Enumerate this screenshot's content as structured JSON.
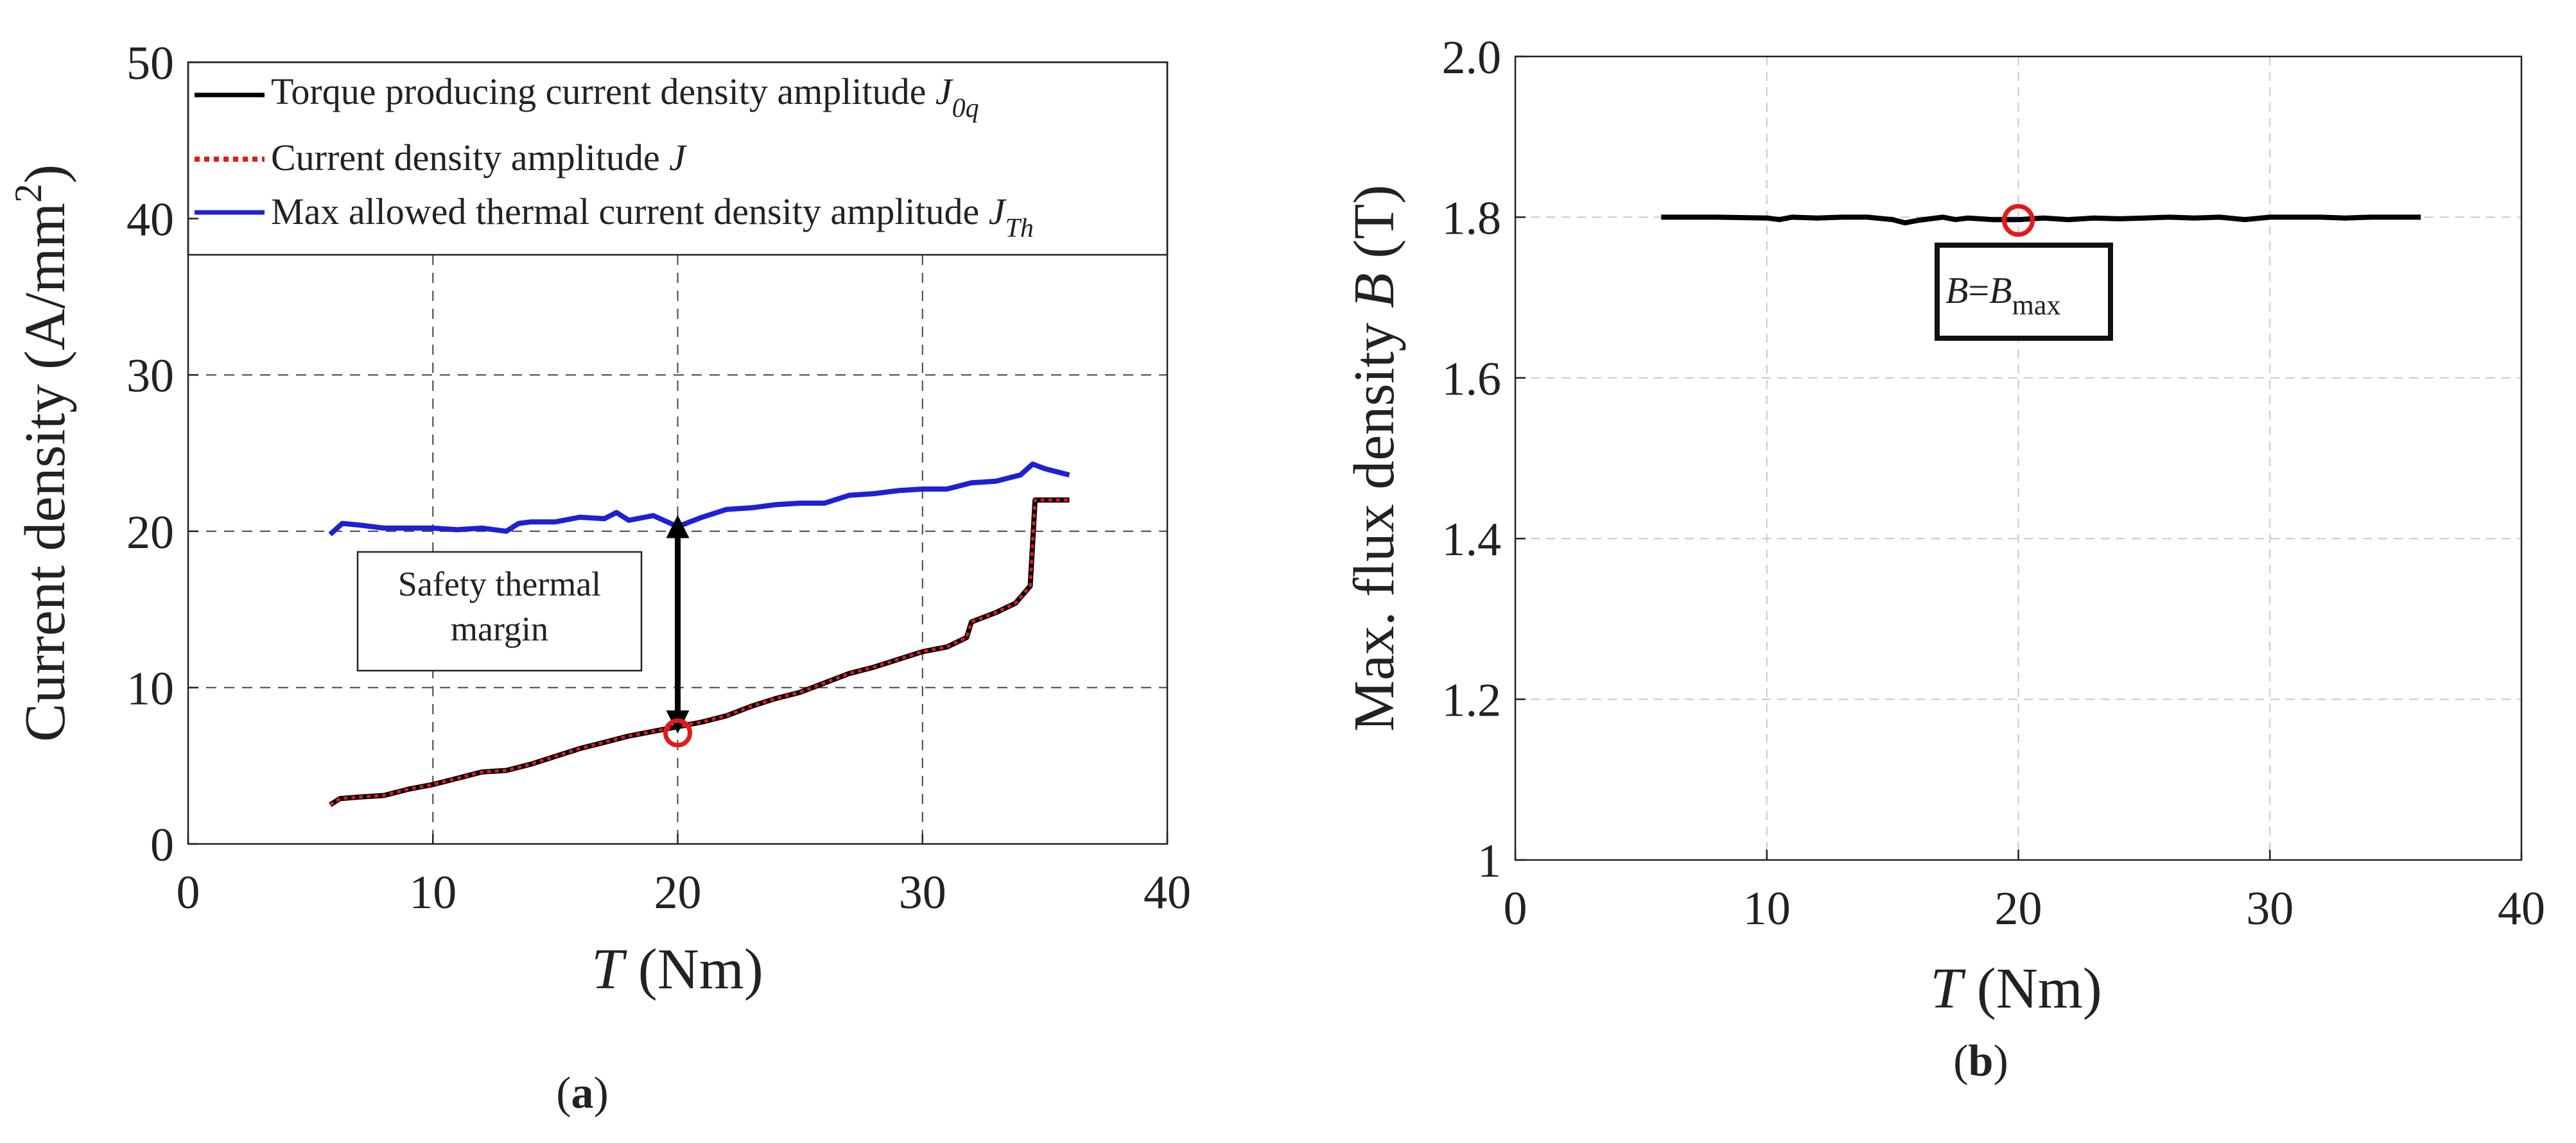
{
  "chart_data": [
    {
      "id": "a",
      "type": "line",
      "caption": "a",
      "xlabel_var": "T",
      "xlabel_unit": "(Nm)",
      "ylabel": "Current density (A/mm",
      "ylabel_sup": "2",
      "ylabel_close": ")",
      "xlim": [
        0,
        40
      ],
      "ylim": [
        0,
        50
      ],
      "xticks": [
        "0",
        "10",
        "20",
        "30",
        "40"
      ],
      "yticks": [
        "0",
        "10",
        "20",
        "30",
        "40",
        "50"
      ],
      "grid": true,
      "legend_position": "top",
      "series": [
        {
          "name": "Torque producing current density amplitude",
          "symbol": "J",
          "subscript": "0q",
          "color": "#000000",
          "style": "solid",
          "x": [
            5.8,
            6.2,
            7,
            8,
            9,
            10,
            11,
            12,
            13,
            14,
            15,
            16,
            17,
            18,
            19,
            20,
            21,
            22,
            23,
            24,
            25,
            26,
            27,
            28,
            29,
            30,
            31,
            31.8,
            32,
            33,
            33.8,
            34.4,
            34.6,
            35,
            36
          ],
          "y": [
            2.5,
            2.9,
            3.0,
            3.1,
            3.5,
            3.8,
            4.2,
            4.6,
            4.7,
            5.1,
            5.6,
            6.1,
            6.5,
            6.9,
            7.2,
            7.5,
            7.8,
            8.2,
            8.8,
            9.3,
            9.7,
            10.3,
            10.9,
            11.3,
            11.8,
            12.3,
            12.6,
            13.2,
            14.2,
            14.8,
            15.4,
            16.5,
            22.0,
            22.0,
            22.0
          ]
        },
        {
          "name": "Current density amplitude",
          "symbol": "J",
          "subscript": "",
          "color": "#e21a1a",
          "style": "dotted",
          "x": [
            5.8,
            6.2,
            7,
            8,
            9,
            10,
            11,
            12,
            13,
            14,
            15,
            16,
            17,
            18,
            19,
            20,
            21,
            22,
            23,
            24,
            25,
            26,
            27,
            28,
            29,
            30,
            31,
            31.8,
            32,
            33,
            33.8,
            34.4,
            34.6,
            35,
            36
          ],
          "y": [
            2.5,
            2.9,
            3.0,
            3.1,
            3.5,
            3.8,
            4.2,
            4.6,
            4.7,
            5.1,
            5.6,
            6.1,
            6.5,
            6.9,
            7.2,
            7.5,
            7.8,
            8.2,
            8.8,
            9.3,
            9.7,
            10.3,
            10.9,
            11.3,
            11.8,
            12.3,
            12.6,
            13.2,
            14.2,
            14.8,
            15.4,
            16.5,
            22.0,
            22.0,
            22.0
          ]
        },
        {
          "name": "Max allowed thermal current density amplitude",
          "symbol": "J",
          "subscript": "Th",
          "color": "#1f1fd6",
          "style": "solid",
          "x": [
            5.8,
            6.3,
            7,
            8,
            9,
            10,
            11,
            12,
            13,
            13.5,
            14,
            15,
            16,
            17,
            17.5,
            18,
            19,
            20,
            21,
            22,
            23,
            24,
            25,
            26,
            27,
            28,
            29,
            30,
            31,
            32,
            33,
            34,
            34.5,
            35,
            36
          ],
          "y": [
            19.8,
            20.5,
            20.4,
            20.2,
            20.2,
            20.2,
            20.1,
            20.2,
            20.0,
            20.5,
            20.6,
            20.6,
            20.9,
            20.8,
            21.2,
            20.7,
            21.0,
            20.3,
            20.9,
            21.4,
            21.5,
            21.7,
            21.8,
            21.8,
            22.3,
            22.4,
            22.6,
            22.7,
            22.7,
            23.1,
            23.2,
            23.6,
            24.3,
            24.0,
            23.6
          ]
        }
      ],
      "annotations": {
        "box_line1": "Safety thermal",
        "box_line2": "margin",
        "marker": {
          "x": 20,
          "y": 7.1,
          "color": "#e21a1a"
        },
        "arrow": {
          "x": 20,
          "y_from": 7.8,
          "y_to": 20.3
        }
      }
    },
    {
      "id": "b",
      "type": "line",
      "caption": "b",
      "xlabel_var": "T",
      "xlabel_unit": "(Nm)",
      "ylabel": "Max. flux density",
      "ylabel_var": "B",
      "ylabel_unit": "(T)",
      "xlim": [
        0,
        40
      ],
      "ylim": [
        1.0,
        2.0
      ],
      "xticks": [
        "0",
        "10",
        "20",
        "30",
        "40"
      ],
      "yticks": [
        "1",
        "1.2",
        "1.4",
        "1.6",
        "1.8",
        "2.0"
      ],
      "grid": true,
      "series": [
        {
          "name": "B",
          "color": "#000000",
          "style": "solid",
          "x": [
            5.8,
            8,
            10,
            10.5,
            11,
            12,
            13,
            14,
            15,
            15.5,
            16,
            17,
            17.5,
            18,
            19,
            20,
            21,
            22,
            23,
            24,
            25,
            26,
            27,
            28,
            29,
            30,
            31,
            32,
            33,
            34,
            35,
            36
          ],
          "y": [
            1.8,
            1.8,
            1.799,
            1.797,
            1.8,
            1.799,
            1.8,
            1.8,
            1.797,
            1.793,
            1.796,
            1.8,
            1.797,
            1.799,
            1.797,
            1.797,
            1.799,
            1.797,
            1.799,
            1.798,
            1.799,
            1.8,
            1.799,
            1.8,
            1.797,
            1.8,
            1.8,
            1.8,
            1.799,
            1.8,
            1.8,
            1.8
          ]
        }
      ],
      "annotations": {
        "box_var": "B",
        "box_eq": "=",
        "box_var2": "B",
        "box_sub": "max",
        "marker": {
          "x": 20,
          "y": 1.796,
          "color": "#e21a1a"
        }
      }
    }
  ]
}
